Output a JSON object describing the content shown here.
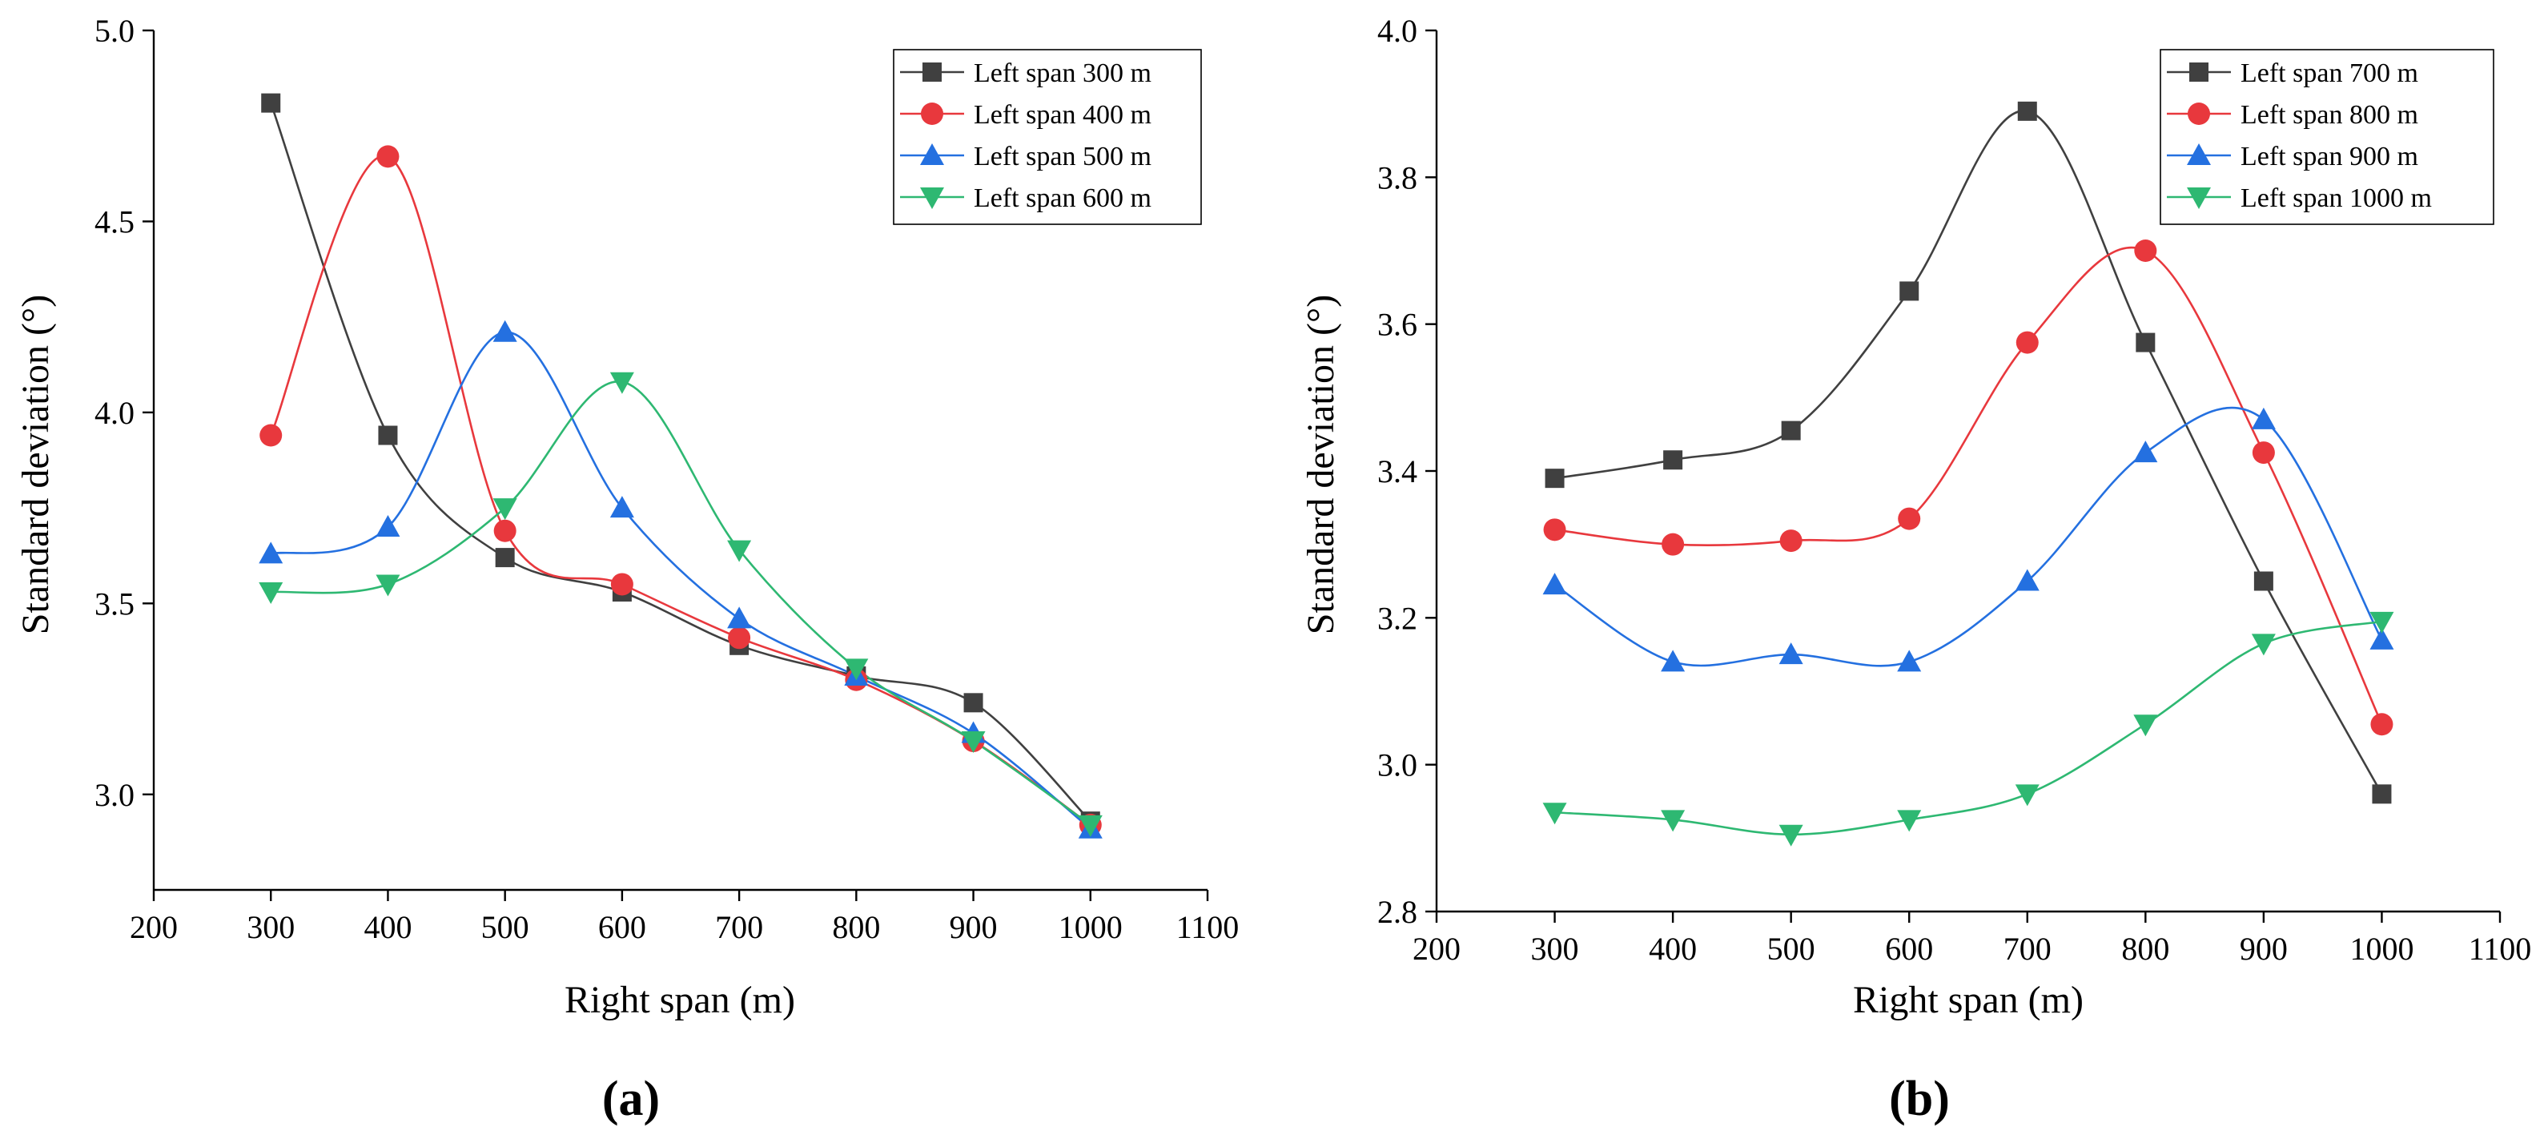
{
  "colors": {
    "black": "#404040",
    "red": "#e8383d",
    "blue": "#2470e0",
    "green": "#2eb872"
  },
  "chart_data": [
    {
      "type": "line",
      "panel_label": "(a)",
      "xlabel": "Right span (m)",
      "ylabel": "Standard deviation (°)",
      "xlim": [
        200,
        1100
      ],
      "ylim": [
        2.75,
        5.0
      ],
      "xticks": [
        200,
        300,
        400,
        500,
        600,
        700,
        800,
        900,
        1000,
        1100
      ],
      "yticks": [
        3.0,
        3.5,
        4.0,
        4.5,
        5.0
      ],
      "ytick_labels": [
        "3.0",
        "3.5",
        "4.0",
        "4.5",
        "5.0"
      ],
      "legend_position": "top-right",
      "x": [
        300,
        400,
        500,
        600,
        700,
        800,
        900,
        1000
      ],
      "series": [
        {
          "name": "Left span 300 m",
          "color": "black",
          "marker": "square",
          "values": [
            4.81,
            3.94,
            3.62,
            3.53,
            3.39,
            3.31,
            3.24,
            2.93
          ]
        },
        {
          "name": "Left span 400 m",
          "color": "red",
          "marker": "circle",
          "values": [
            3.94,
            4.67,
            3.69,
            3.55,
            3.41,
            3.3,
            3.14,
            2.92
          ]
        },
        {
          "name": "Left span 500 m",
          "color": "blue",
          "marker": "triangle-up",
          "values": [
            3.63,
            3.7,
            4.21,
            3.75,
            3.46,
            3.31,
            3.16,
            2.91
          ]
        },
        {
          "name": "Left span 600 m",
          "color": "green",
          "marker": "triangle-down",
          "values": [
            3.53,
            3.55,
            3.75,
            4.08,
            3.64,
            3.33,
            3.14,
            2.92
          ]
        }
      ]
    },
    {
      "type": "line",
      "panel_label": "(b)",
      "xlabel": "Right span (m)",
      "ylabel": "Standard deviation (°)",
      "xlim": [
        200,
        1100
      ],
      "ylim": [
        2.8,
        4.0
      ],
      "xticks": [
        200,
        300,
        400,
        500,
        600,
        700,
        800,
        900,
        1000,
        1100
      ],
      "yticks": [
        2.8,
        3.0,
        3.2,
        3.4,
        3.6,
        3.8,
        4.0
      ],
      "ytick_labels": [
        "2.8",
        "3.0",
        "3.2",
        "3.4",
        "3.6",
        "3.8",
        "4.0"
      ],
      "legend_position": "top-right",
      "x": [
        300,
        400,
        500,
        600,
        700,
        800,
        900,
        1000
      ],
      "series": [
        {
          "name": "Left span 700 m",
          "color": "black",
          "marker": "square",
          "values": [
            3.39,
            3.415,
            3.455,
            3.645,
            3.89,
            3.575,
            3.25,
            2.96
          ]
        },
        {
          "name": "Left span 800 m",
          "color": "red",
          "marker": "circle",
          "values": [
            3.32,
            3.3,
            3.305,
            3.335,
            3.575,
            3.7,
            3.425,
            3.055
          ]
        },
        {
          "name": "Left span 900 m",
          "color": "blue",
          "marker": "triangle-up",
          "values": [
            3.245,
            3.14,
            3.15,
            3.14,
            3.25,
            3.425,
            3.47,
            3.17
          ]
        },
        {
          "name": "Left span 1000 m",
          "color": "green",
          "marker": "triangle-down",
          "values": [
            2.935,
            2.925,
            2.905,
            2.925,
            2.96,
            3.055,
            3.165,
            3.195
          ]
        }
      ]
    }
  ]
}
